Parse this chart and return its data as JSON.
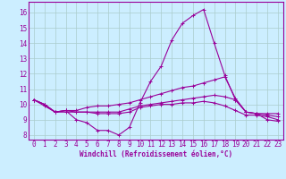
{
  "title": "",
  "xlabel": "Windchill (Refroidissement éolien,°C)",
  "ylabel": "",
  "bg_color": "#cceeff",
  "line_color": "#990099",
  "grid_color": "#aacccc",
  "xlim": [
    -0.5,
    23.5
  ],
  "ylim": [
    7.7,
    16.7
  ],
  "xticks": [
    0,
    1,
    2,
    3,
    4,
    5,
    6,
    7,
    8,
    9,
    10,
    11,
    12,
    13,
    14,
    15,
    16,
    17,
    18,
    19,
    20,
    21,
    22,
    23
  ],
  "yticks": [
    8,
    9,
    10,
    11,
    12,
    13,
    14,
    15,
    16
  ],
  "lines": [
    [
      10.3,
      10.0,
      9.5,
      9.6,
      9.0,
      8.8,
      8.3,
      8.3,
      8.0,
      8.5,
      10.1,
      11.5,
      12.5,
      14.2,
      15.3,
      15.8,
      16.2,
      14.0,
      11.9,
      10.3,
      9.5,
      9.4,
      9.0,
      8.9
    ],
    [
      10.3,
      10.0,
      9.5,
      9.6,
      9.6,
      9.8,
      9.9,
      9.9,
      10.0,
      10.1,
      10.3,
      10.5,
      10.7,
      10.9,
      11.1,
      11.2,
      11.4,
      11.6,
      11.8,
      10.4,
      9.5,
      9.4,
      9.4,
      9.4
    ],
    [
      10.3,
      9.9,
      9.5,
      9.5,
      9.5,
      9.5,
      9.5,
      9.5,
      9.5,
      9.7,
      9.9,
      10.0,
      10.1,
      10.2,
      10.3,
      10.4,
      10.5,
      10.6,
      10.5,
      10.3,
      9.5,
      9.4,
      9.3,
      9.2
    ],
    [
      10.3,
      10.0,
      9.5,
      9.6,
      9.5,
      9.5,
      9.4,
      9.4,
      9.4,
      9.5,
      9.8,
      9.9,
      10.0,
      10.0,
      10.1,
      10.1,
      10.2,
      10.1,
      9.9,
      9.6,
      9.3,
      9.3,
      9.2,
      9.0
    ]
  ],
  "tick_fontsize": 5.5,
  "xlabel_fontsize": 5.5
}
